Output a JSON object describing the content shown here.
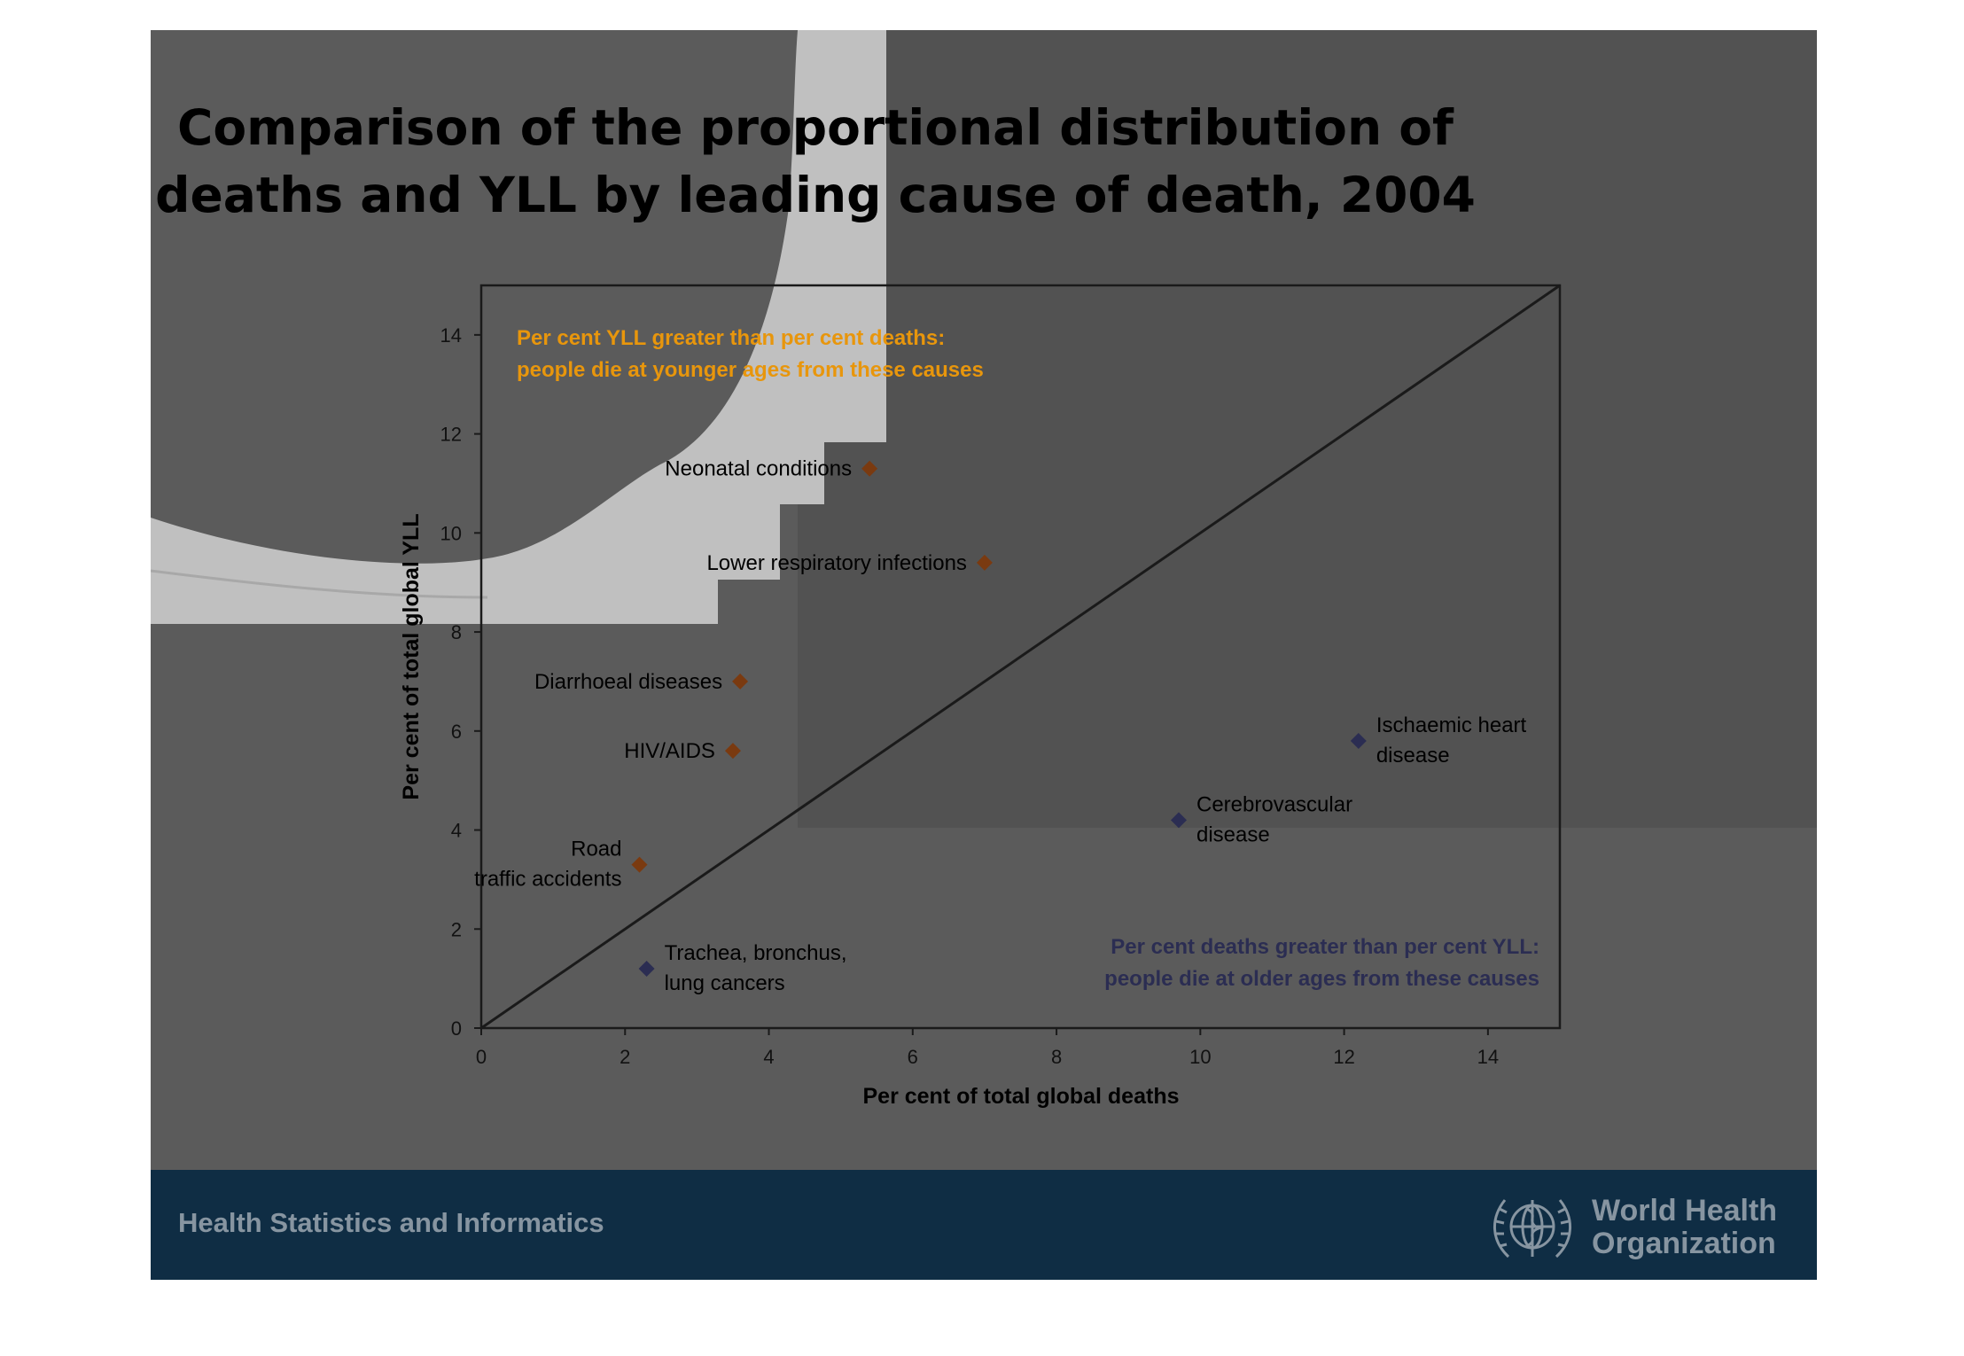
{
  "slide": {
    "title_line1": "Comparison of the proportional distribution of",
    "title_line2": "deaths and YLL by leading cause of death, 2004",
    "background_color": "#5b5b5b",
    "accent_color": "#c0c0c0"
  },
  "footer": {
    "text": "Health Statistics and Informatics",
    "org_line1": "World Health",
    "org_line2": "Organization",
    "logo_icon": "who-emblem-icon",
    "bar_color": "#0f2d44"
  },
  "chart_data": {
    "type": "scatter",
    "title": "",
    "xlabel": "Per cent of total global deaths",
    "ylabel": "Per cent of total global YLL",
    "xlim": [
      0,
      15
    ],
    "ylim": [
      0,
      15
    ],
    "xticks": [
      "0",
      "2",
      "4",
      "6",
      "8",
      "10",
      "12",
      "14"
    ],
    "yticks": [
      "0",
      "2",
      "4",
      "6",
      "8",
      "10",
      "12",
      "14"
    ],
    "grid": false,
    "reference_line": {
      "x": [
        0,
        15
      ],
      "y": [
        0,
        15
      ]
    },
    "series": [
      {
        "color": "#7a3a10",
        "points": [
          {
            "label": "Neonatal conditions",
            "x": 5.4,
            "y": 11.3
          },
          {
            "label": "Lower respiratory infections",
            "x": 7.0,
            "y": 9.4
          },
          {
            "label": "Diarrhoeal diseases",
            "x": 3.6,
            "y": 7.0
          },
          {
            "label": "HIV/AIDS",
            "x": 3.5,
            "y": 5.6
          },
          {
            "label": "Road traffic accidents",
            "x": 2.2,
            "y": 3.3
          }
        ]
      },
      {
        "color": "#2b2d52",
        "points": [
          {
            "label": "Ischaemic heart disease",
            "x": 12.2,
            "y": 5.8
          },
          {
            "label": "Cerebrovascular disease",
            "x": 9.7,
            "y": 4.2
          },
          {
            "label": "Trachea, bronchus, lung cancers",
            "x": 2.3,
            "y": 1.2
          }
        ]
      }
    ],
    "annotations": [
      {
        "color": "#e8960c",
        "line1": "Per cent YLL greater than per cent deaths:",
        "line2": "people die at younger ages from these causes"
      },
      {
        "color": "#2b2d52",
        "line1": "Per cent deaths greater than per cent YLL:",
        "line2": "people die at older ages from these causes"
      }
    ]
  }
}
